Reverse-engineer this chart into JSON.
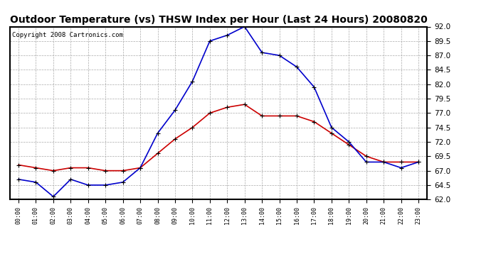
{
  "title": "Outdoor Temperature (vs) THSW Index per Hour (Last 24 Hours) 20080820",
  "copyright_text": "Copyright 2008 Cartronics.com",
  "hours": [
    "00:00",
    "01:00",
    "02:00",
    "03:00",
    "04:00",
    "05:00",
    "06:00",
    "07:00",
    "08:00",
    "09:00",
    "10:00",
    "11:00",
    "12:00",
    "13:00",
    "14:00",
    "15:00",
    "16:00",
    "17:00",
    "18:00",
    "19:00",
    "20:00",
    "21:00",
    "22:00",
    "23:00"
  ],
  "temp_red": [
    68.0,
    67.5,
    67.0,
    67.5,
    67.5,
    67.0,
    67.0,
    67.5,
    70.0,
    72.5,
    74.5,
    77.0,
    78.0,
    78.5,
    76.5,
    76.5,
    76.5,
    75.5,
    73.5,
    71.5,
    69.5,
    68.5,
    68.5,
    68.5
  ],
  "thsw_blue": [
    65.5,
    65.0,
    62.5,
    65.5,
    64.5,
    64.5,
    65.0,
    67.5,
    73.5,
    77.5,
    82.5,
    89.5,
    90.5,
    92.0,
    87.5,
    87.0,
    85.0,
    81.5,
    74.5,
    72.0,
    68.5,
    68.5,
    67.5,
    68.5
  ],
  "ylim": [
    62.0,
    92.0
  ],
  "yticks": [
    62.0,
    64.5,
    67.0,
    69.5,
    72.0,
    74.5,
    77.0,
    79.5,
    82.0,
    84.5,
    87.0,
    89.5,
    92.0
  ],
  "bg_color": "#ffffff",
  "plot_bg_color": "#ffffff",
  "grid_color": "#aaaaaa",
  "red_color": "#cc0000",
  "blue_color": "#0000cc",
  "title_fontsize": 10,
  "copyright_fontsize": 6.5
}
